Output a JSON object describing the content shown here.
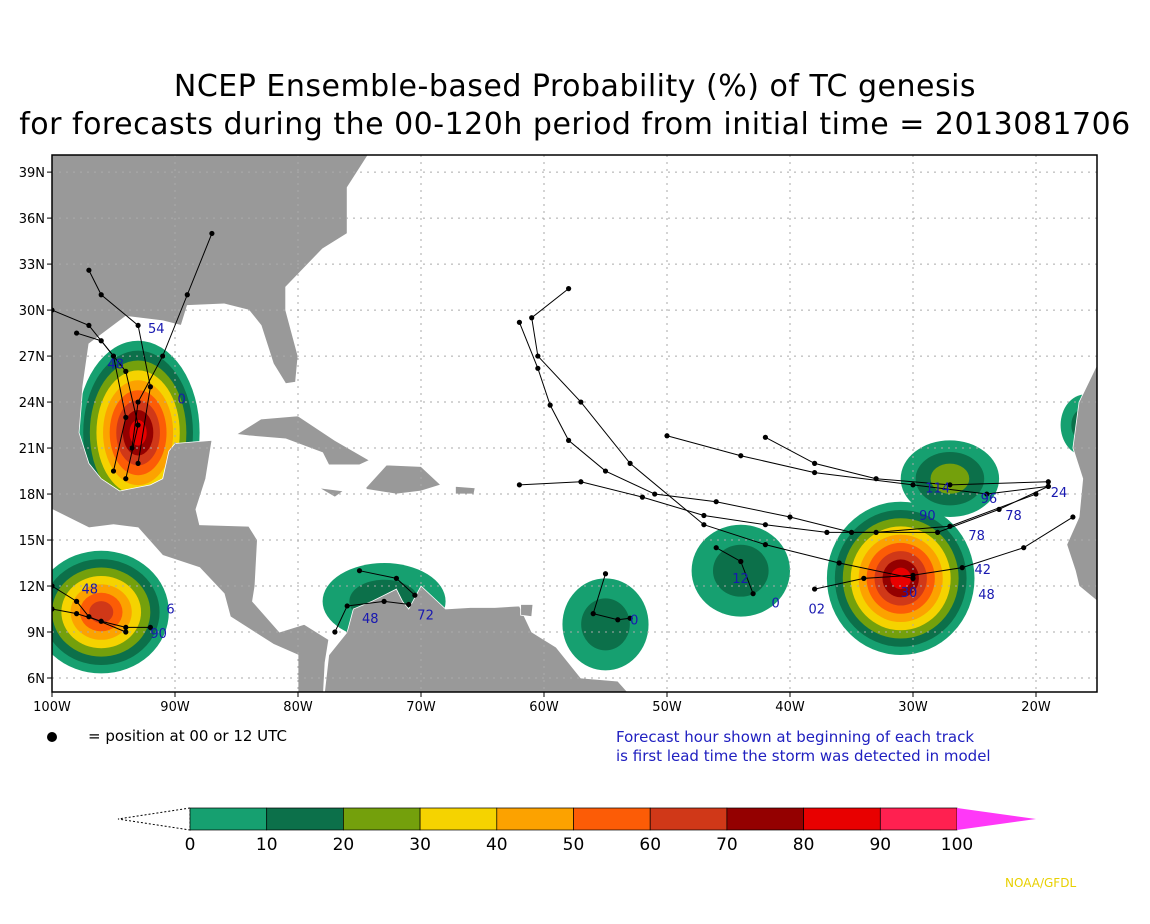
{
  "title_line1": "NCEP Ensemble-based Probability (%) of TC genesis",
  "title_line2": "for forecasts during the 00-120h period from initial time = 2013081706",
  "lat_labels": [
    "39N",
    "36N",
    "33N",
    "30N",
    "27N",
    "24N",
    "21N",
    "18N",
    "15N",
    "12N",
    "9N",
    "6N"
  ],
  "lon_labels": [
    "100W",
    "90W",
    "80W",
    "70W",
    "60W",
    "50W",
    "40W",
    "30W",
    "20W"
  ],
  "legend_dot": "= position at 00 or 12 UTC",
  "note_line1": "Forecast hour shown at beginning of each track",
  "note_line2": "is first lead time the storm was detected in model",
  "colorbar": {
    "ticks": [
      "0",
      "10",
      "20",
      "30",
      "40",
      "50",
      "60",
      "70",
      "80",
      "90",
      "100"
    ],
    "colors": [
      "#16a070",
      "#0c704a",
      "#74a00c",
      "#f5d300",
      "#fca200",
      "#fc5c06",
      "#d03818",
      "#940000",
      "#e80000",
      "#ff2050"
    ],
    "over_color": "#ff38f8"
  },
  "credit": "NOAA/GFDL",
  "map_colors": {
    "ocean": "#ffffff",
    "land": "#999999",
    "border": "#ffffff"
  },
  "genesis_areas": [
    {
      "lon": -93,
      "lat": 22,
      "rx": 5,
      "ry": 6,
      "peak": 80
    },
    {
      "lon": -96,
      "lat": 10.3,
      "rx": 5.5,
      "ry": 4,
      "peak": 60
    },
    {
      "lon": -31,
      "lat": 12.5,
      "rx": 6,
      "ry": 5,
      "peak": 80
    },
    {
      "lon": -44,
      "lat": 13,
      "rx": 4,
      "ry": 3,
      "peak": 10
    },
    {
      "lon": -73,
      "lat": 11,
      "rx": 5,
      "ry": 2.5,
      "peak": 10
    },
    {
      "lon": -55,
      "lat": 9.5,
      "rx": 3.5,
      "ry": 3,
      "peak": 10
    },
    {
      "lon": -27,
      "lat": 19,
      "rx": 4,
      "ry": 2.5,
      "peak": 20
    },
    {
      "lon": -16,
      "lat": 22.5,
      "rx": 2,
      "ry": 2,
      "peak": 10
    }
  ],
  "tracks": [
    [
      [
        -62,
        29.2
      ],
      [
        -60.5,
        26.2
      ],
      [
        -59.5,
        23.8
      ],
      [
        -58,
        21.5
      ],
      [
        -55,
        19.5
      ],
      [
        -51,
        18
      ],
      [
        -46,
        17.5
      ],
      [
        -40,
        16.5
      ],
      [
        -35,
        15.5
      ],
      [
        -28,
        15.5
      ],
      [
        -23,
        17
      ],
      [
        -19,
        18.5
      ]
    ],
    [
      [
        -58,
        31.4
      ],
      [
        -61,
        29.5
      ],
      [
        -60.5,
        27
      ],
      [
        -57,
        24
      ],
      [
        -53,
        20
      ],
      [
        -47,
        16
      ],
      [
        -42,
        14.7
      ],
      [
        -36,
        13.5
      ],
      [
        -30,
        12.5
      ]
    ],
    [
      [
        -50,
        21.8
      ],
      [
        -44,
        20.5
      ],
      [
        -38,
        19.4
      ],
      [
        -30,
        18.6
      ],
      [
        -24,
        18
      ],
      [
        -19,
        18.5
      ]
    ],
    [
      [
        -42,
        21.7
      ],
      [
        -38,
        20
      ],
      [
        -33,
        19
      ],
      [
        -27,
        18.6
      ],
      [
        -19,
        18.8
      ]
    ],
    [
      [
        -62,
        18.6
      ],
      [
        -57,
        18.8
      ],
      [
        -52,
        17.8
      ],
      [
        -47,
        16.6
      ],
      [
        -42,
        16
      ],
      [
        -37,
        15.5
      ],
      [
        -33,
        15.5
      ],
      [
        -27,
        15.9
      ],
      [
        -20,
        18
      ]
    ],
    [
      [
        -38,
        11.8
      ],
      [
        -34,
        12.5
      ],
      [
        -30,
        12.7
      ],
      [
        -26,
        13.2
      ],
      [
        -21,
        14.5
      ],
      [
        -17,
        16.5
      ]
    ],
    [
      [
        -46,
        14.5
      ],
      [
        -44,
        13.6
      ],
      [
        -43,
        11.5
      ]
    ],
    [
      [
        -55,
        12.8
      ],
      [
        -56,
        10.2
      ],
      [
        -54,
        9.8
      ],
      [
        -53,
        9.9
      ]
    ],
    [
      [
        -77,
        9
      ],
      [
        -76,
        10.7
      ],
      [
        -73,
        11
      ],
      [
        -71,
        10.8
      ]
    ],
    [
      [
        -75,
        13
      ],
      [
        -72,
        12.5
      ],
      [
        -70.5,
        11.4
      ]
    ],
    [
      [
        -87,
        35
      ],
      [
        -89,
        31
      ],
      [
        -91,
        27
      ],
      [
        -93,
        24
      ],
      [
        -93.5,
        21
      ]
    ],
    [
      [
        -98,
        28.5
      ],
      [
        -96,
        28
      ],
      [
        -94,
        26
      ],
      [
        -93,
        22.5
      ],
      [
        -94,
        19
      ]
    ],
    [
      [
        -100,
        30
      ],
      [
        -97,
        29
      ],
      [
        -95,
        27
      ],
      [
        -94,
        23
      ],
      [
        -95,
        19.5
      ]
    ],
    [
      [
        -97,
        32.6
      ],
      [
        -96,
        31
      ],
      [
        -93,
        29
      ],
      [
        -92,
        25
      ],
      [
        -93,
        20
      ]
    ],
    [
      [
        -100,
        10.5
      ],
      [
        -98,
        10.2
      ],
      [
        -96,
        9.7
      ],
      [
        -94,
        9.3
      ],
      [
        -92,
        9.3
      ]
    ],
    [
      [
        -100,
        12
      ],
      [
        -98,
        11
      ],
      [
        -97,
        10
      ],
      [
        -94,
        9
      ]
    ]
  ],
  "hour_labels": [
    {
      "t": "54",
      "lon": -92.2,
      "lat": 28.5
    },
    {
      "t": "48",
      "lon": -95.5,
      "lat": 26.2
    },
    {
      "t": "0",
      "lon": -89.8,
      "lat": 23.9
    },
    {
      "t": "48",
      "lon": -97.6,
      "lat": 11.5
    },
    {
      "t": "6",
      "lon": -90.7,
      "lat": 10.2
    },
    {
      "t": "90",
      "lon": -92,
      "lat": 8.6
    },
    {
      "t": "48",
      "lon": -74.8,
      "lat": 9.6
    },
    {
      "t": "72",
      "lon": -70.3,
      "lat": 9.8
    },
    {
      "t": "12",
      "lon": -44.7,
      "lat": 12.2
    },
    {
      "t": "0",
      "lon": -41.5,
      "lat": 10.6
    },
    {
      "t": "02",
      "lon": -38.5,
      "lat": 10.2
    },
    {
      "t": "0",
      "lon": -53,
      "lat": 9.5
    },
    {
      "t": "114",
      "lon": -29,
      "lat": 18.1
    },
    {
      "t": "90",
      "lon": -29.5,
      "lat": 16.3
    },
    {
      "t": "78",
      "lon": -22.5,
      "lat": 16.3
    },
    {
      "t": "96",
      "lon": -24.5,
      "lat": 17.4
    },
    {
      "t": "78",
      "lon": -25.5,
      "lat": 15
    },
    {
      "t": "42",
      "lon": -25,
      "lat": 12.8
    },
    {
      "t": "48",
      "lon": -24.7,
      "lat": 12.2
    },
    {
      "t": "24",
      "lon": -18.8,
      "lat": 17.8
    },
    {
      "t": "30",
      "lon": -31,
      "lat": 11.3
    }
  ]
}
